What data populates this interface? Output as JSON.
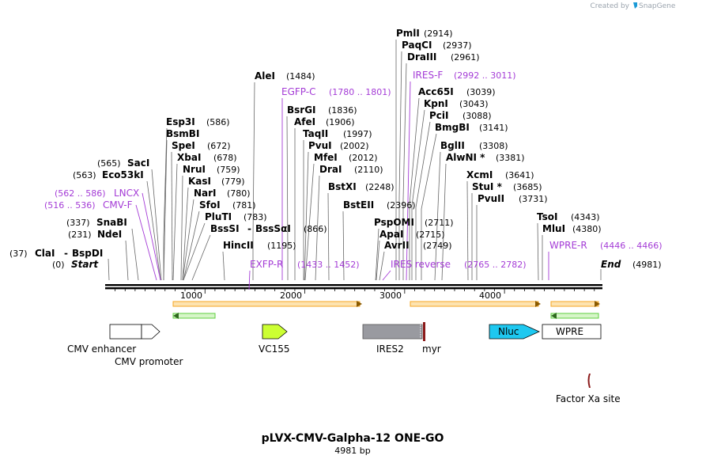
{
  "credit": "Created by",
  "brand": "SnapGene",
  "title": "pLVX-CMV-Galpha-12 ONE-GO",
  "length_label": "4981 bp",
  "start_label": "Start",
  "start_pos": "(0)",
  "end_label": "End",
  "end_pos": "(4981)",
  "axis": {
    "length": 4981,
    "ticks": [
      "1000",
      "2000",
      "3000",
      "4000"
    ],
    "tick_values": [
      1000,
      2000,
      3000,
      4000
    ]
  },
  "sites": [
    {
      "name": "PmlI",
      "pos": "(2914)",
      "bp": 2914
    },
    {
      "name": "PaqCI",
      "pos": "(2937)",
      "bp": 2937
    },
    {
      "name": "DraIII",
      "pos": "(2961)",
      "bp": 2961
    },
    {
      "name": "AleI",
      "pos": "(1484)",
      "bp": 1484
    },
    {
      "name": "Acc65I",
      "pos": "(3039)",
      "bp": 3039
    },
    {
      "name": "KpnI",
      "pos": "(3043)",
      "bp": 3043
    },
    {
      "name": "PciI",
      "pos": "(3088)",
      "bp": 3088
    },
    {
      "name": "BmgBI",
      "pos": "(3141)",
      "bp": 3141
    },
    {
      "name": "BsrGI",
      "pos": "(1836)",
      "bp": 1836
    },
    {
      "name": "AfeI",
      "pos": "(1906)",
      "bp": 1906
    },
    {
      "name": "TaqII",
      "pos": "(1997)",
      "bp": 1997
    },
    {
      "name": "PvuI",
      "pos": "(2002)",
      "bp": 2002
    },
    {
      "name": "MfeI",
      "pos": "(2012)",
      "bp": 2012
    },
    {
      "name": "DraI",
      "pos": "(2110)",
      "bp": 2110
    },
    {
      "name": "BstXI",
      "pos": "(2248)",
      "bp": 2248
    },
    {
      "name": "BstEII",
      "pos": "(2396)",
      "bp": 2396
    },
    {
      "name": "Esp3I",
      "pos": "(586)",
      "bp": 586
    },
    {
      "name": "BsmBI",
      "pos": "",
      "bp": 586
    },
    {
      "name": "SpeI",
      "pos": "(672)",
      "bp": 672
    },
    {
      "name": "XbaI",
      "pos": "(678)",
      "bp": 678
    },
    {
      "name": "NruI",
      "pos": "(759)",
      "bp": 759
    },
    {
      "name": "KasI",
      "pos": "(779)",
      "bp": 779
    },
    {
      "name": "NarI",
      "pos": "(780)",
      "bp": 780
    },
    {
      "name": "SfoI",
      "pos": "(781)",
      "bp": 781
    },
    {
      "name": "PluTI",
      "pos": "(783)",
      "bp": 783
    },
    {
      "name": "BssSI",
      "pos": "",
      "bp": 866
    },
    {
      "name": "BssSαI",
      "pos": "(866)",
      "bp": 866
    },
    {
      "name": "HincII",
      "pos": "(1195)",
      "bp": 1195
    },
    {
      "name": "SacI",
      "pos": "(565)",
      "bp": 565
    },
    {
      "name": "Eco53kI",
      "pos": "(563)",
      "bp": 563
    },
    {
      "name": "SnaBI",
      "pos": "(337)",
      "bp": 337
    },
    {
      "name": "NdeI",
      "pos": "(231)",
      "bp": 231
    },
    {
      "name": "ClaI",
      "pos": "(37)",
      "bp": 37
    },
    {
      "name": "BspDI",
      "pos": "",
      "bp": 37
    },
    {
      "name": "BglII",
      "pos": "(3308)",
      "bp": 3308
    },
    {
      "name": "AlwNI *",
      "pos": "(3381)",
      "bp": 3381
    },
    {
      "name": "PspOMI",
      "pos": "",
      "bp": 2711
    },
    {
      "name": "ApaI",
      "pos": "(2715)",
      "bp": 2715
    },
    {
      "name": "AvrII",
      "pos": "(2749)",
      "bp": 2749
    },
    {
      "name": "XcmI",
      "pos": "(3641)",
      "bp": 3641
    },
    {
      "name": "StuI *",
      "pos": "(3685)",
      "bp": 3685
    },
    {
      "name": "PvuII",
      "pos": "(3731)",
      "bp": 3731
    },
    {
      "name": "TsoI",
      "pos": "(4343)",
      "bp": 4343
    },
    {
      "name": "MluI",
      "pos": "(4380)",
      "bp": 4380
    }
  ],
  "site_extra_pos": "(2711)",
  "primers": [
    {
      "name": "IRES-F",
      "range": "(2992 .. 3011)",
      "bp": 2992
    },
    {
      "name": "EGFP-C",
      "range": "(1780 .. 1801)",
      "bp": 1780
    },
    {
      "name": "LNCX",
      "range": "(562 .. 586)",
      "bp": 562
    },
    {
      "name": "CMV-F",
      "range": "(516 .. 536)",
      "bp": 516
    },
    {
      "name": "EXFP-R",
      "range": "(1433 .. 1452)",
      "bp": 1433
    },
    {
      "name": "IRES reverse",
      "range": "(2765 .. 2782)",
      "bp": 2765
    },
    {
      "name": "WPRE-R",
      "range": "(4446 .. 4466)",
      "bp": 4446
    }
  ],
  "features": [
    {
      "name": "CMV enhancer",
      "color": "#ffffff"
    },
    {
      "name": "CMV promoter",
      "color": "#ffffff"
    },
    {
      "name": "VC155",
      "color": "#ccff33"
    },
    {
      "name": "IRES2",
      "color": "#999aa0"
    },
    {
      "name": "myr",
      "color": "#8b1a1a"
    },
    {
      "name": "Nluc",
      "color": "#1ec8f0"
    },
    {
      "name": "WPRE",
      "color": "#ffffff"
    },
    {
      "name": "Factor Xa site",
      "color": "#8b1a1a"
    }
  ],
  "colors": {
    "orf": "#f5a623",
    "primer": "#a43bd6",
    "forward_arrow": "#c8860d",
    "reverse_arrow": "#2e9a2e"
  }
}
